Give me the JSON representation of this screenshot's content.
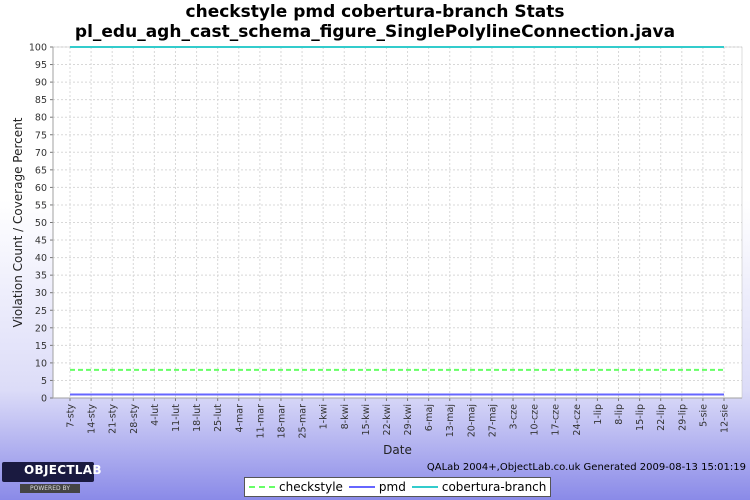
{
  "chart_data": {
    "type": "line",
    "title": "checkstyle pmd cobertura-branch  Stats",
    "subtitle": "pl_edu_agh_cast_schema_figure_SinglePolylineConnection.java",
    "xlabel": "Date",
    "ylabel": "Violation Count / Coverage Percent",
    "ylim": [
      0,
      100
    ],
    "yticks": [
      0,
      5,
      10,
      15,
      20,
      25,
      30,
      35,
      40,
      45,
      50,
      55,
      60,
      65,
      70,
      75,
      80,
      85,
      90,
      95,
      100
    ],
    "categories": [
      "7-sty",
      "14-sty",
      "21-sty",
      "28-sty",
      "4-lut",
      "11-lut",
      "18-lut",
      "25-lut",
      "4-mar",
      "11-mar",
      "18-mar",
      "25-mar",
      "1-kwi",
      "8-kwi",
      "15-kwi",
      "22-kwi",
      "29-kwi",
      "6-maj",
      "13-maj",
      "20-maj",
      "27-maj",
      "3-cze",
      "10-cze",
      "17-cze",
      "24-cze",
      "1-lip",
      "8-lip",
      "15-lip",
      "22-lip",
      "29-lip",
      "5-sie",
      "12-sie"
    ],
    "series": [
      {
        "name": "checkstyle",
        "color": "#66ff66",
        "style": "dashed",
        "values": [
          8,
          8,
          8,
          8,
          8,
          8,
          8,
          8,
          8,
          8,
          8,
          8,
          8,
          8,
          8,
          8,
          8,
          8,
          8,
          8,
          8,
          8,
          8,
          8,
          8,
          8,
          8,
          8,
          8,
          8,
          8,
          8
        ]
      },
      {
        "name": "pmd",
        "color": "#6666ff",
        "style": "solid",
        "values": [
          1,
          1,
          1,
          1,
          1,
          1,
          1,
          1,
          1,
          1,
          1,
          1,
          1,
          1,
          1,
          1,
          1,
          1,
          1,
          1,
          1,
          1,
          1,
          1,
          1,
          1,
          1,
          1,
          1,
          1,
          1,
          1
        ]
      },
      {
        "name": "cobertura-branch",
        "color": "#33cccc",
        "style": "solid",
        "values": [
          100,
          100,
          100,
          100,
          100,
          100,
          100,
          100,
          100,
          100,
          100,
          100,
          100,
          100,
          100,
          100,
          100,
          100,
          100,
          100,
          100,
          100,
          100,
          100,
          100,
          100,
          100,
          100,
          100,
          100,
          100,
          100
        ]
      }
    ],
    "grid": true,
    "legend_position": "bottom"
  },
  "footer": {
    "credit": "QALab 2004+,ObjectLab.co.uk Generated 2009-08-13 15:01:19",
    "logo_text": "OBJECTLAB",
    "logo_sub": "POWERED BY"
  }
}
